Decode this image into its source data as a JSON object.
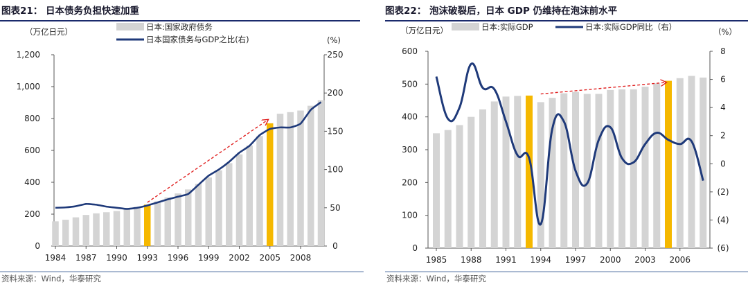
{
  "chart_data": [
    {
      "type": "bar",
      "title": "图表21：  日本债务负担快速加重",
      "ylabel_left_unit": "（万亿日元）",
      "ylabel_right_unit": "(%)",
      "legend": [
        {
          "label": "日本:国家政府债务",
          "kind": "bar",
          "color": "#d4d4d4"
        },
        {
          "label": "日本国家债务与GDP之比(右)",
          "kind": "line",
          "color": "#1f3a7a"
        }
      ],
      "x_tick_labels": [
        "1984",
        "1987",
        "1990",
        "1993",
        "1996",
        "1999",
        "2002",
        "2005",
        "2008"
      ],
      "y_left_ticks": [
        "0",
        "200",
        "400",
        "600",
        "800",
        "1,000",
        "1,200"
      ],
      "y_right_ticks": [
        "0",
        "50",
        "100",
        "150",
        "200",
        "250"
      ],
      "ylim_left": [
        0,
        1200
      ],
      "ylim_right": [
        0,
        250
      ],
      "categories": [
        1984,
        1985,
        1986,
        1987,
        1988,
        1989,
        1990,
        1991,
        1992,
        1993,
        1994,
        1995,
        1996,
        1997,
        1998,
        1999,
        2000,
        2001,
        2002,
        2003,
        2004,
        2005,
        2006,
        2007,
        2008,
        2009,
        2010
      ],
      "series": [
        {
          "name": "日本:国家政府债务",
          "type": "bar",
          "axis": "left",
          "values": [
            155,
            165,
            180,
            195,
            205,
            212,
            220,
            232,
            245,
            260,
            280,
            305,
            330,
            355,
            390,
            430,
            475,
            520,
            575,
            630,
            690,
            770,
            830,
            840,
            850,
            880,
            915
          ],
          "highlight": [
            1993,
            2005
          ],
          "highlight_color": "#f5b800"
        },
        {
          "name": "日本国家债务与GDP之比(右)",
          "type": "line",
          "axis": "right",
          "values": [
            50,
            50.5,
            52,
            55,
            54,
            51.5,
            50,
            48.5,
            50,
            53,
            57,
            61,
            64.5,
            68,
            80,
            92,
            100,
            110,
            122,
            131,
            145,
            153,
            155,
            155,
            160,
            178,
            188
          ]
        }
      ],
      "annotation": {
        "type": "dashed-arrow",
        "from": [
          1993,
          57
        ],
        "to": [
          2004.8,
          165
        ],
        "color": "#e02020"
      },
      "source": "资料来源：Wind，华泰研究"
    },
    {
      "type": "bar",
      "title": "图表22：  泡沫破裂后，日本 GDP 仍维持在泡沫前水平",
      "ylabel_left_unit": "（万亿日元）",
      "ylabel_right_unit": "（%）",
      "legend": [
        {
          "label": "日本:实际GDP",
          "kind": "bar",
          "color": "#d4d4d4"
        },
        {
          "label": "日本:实际GDP同比（右）",
          "kind": "line",
          "color": "#1f3a7a"
        }
      ],
      "x_tick_labels": [
        "1985",
        "1988",
        "1991",
        "1994",
        "1997",
        "2000",
        "2003",
        "2006"
      ],
      "y_left_ticks": [
        "0",
        "100",
        "200",
        "300",
        "400",
        "500",
        "600"
      ],
      "y_right_ticks": [
        "(6)",
        "(4)",
        "(2)",
        "0",
        "2",
        "4",
        "6",
        "8"
      ],
      "ylim_left": [
        0,
        600
      ],
      "ylim_right": [
        -6,
        8
      ],
      "categories": [
        1985,
        1986,
        1987,
        1988,
        1989,
        1990,
        1991,
        1992,
        1993,
        1994,
        1995,
        1996,
        1997,
        1998,
        1999,
        2000,
        2001,
        2002,
        2003,
        2004,
        2005,
        2006,
        2007,
        2008
      ],
      "series": [
        {
          "name": "日本:实际GDP",
          "type": "bar",
          "axis": "left",
          "values": [
            350,
            360,
            375,
            400,
            423,
            447,
            462,
            464,
            465,
            445,
            458,
            472,
            476,
            470,
            470,
            482,
            484,
            484,
            492,
            502,
            510,
            518,
            525,
            520
          ],
          "highlight": [
            1993,
            2005
          ],
          "highlight_color": "#f5b800"
        },
        {
          "name": "日本:实际GDP同比（右）",
          "type": "line",
          "axis": "right",
          "values": [
            6.2,
            3.2,
            4.0,
            7.1,
            5.4,
            5.3,
            3.0,
            0.6,
            0.4,
            -4.3,
            2.5,
            3.0,
            -0.5,
            -1.4,
            1.7,
            2.6,
            0.4,
            0.1,
            1.4,
            2.2,
            1.7,
            1.4,
            1.6,
            -1.2
          ]
        }
      ],
      "annotation": {
        "type": "dashed-arrow",
        "from": [
          1994,
          470
        ],
        "to": [
          2004.8,
          505
        ],
        "color": "#e02020"
      },
      "source": "资料来源：Wind，华泰研究"
    }
  ]
}
